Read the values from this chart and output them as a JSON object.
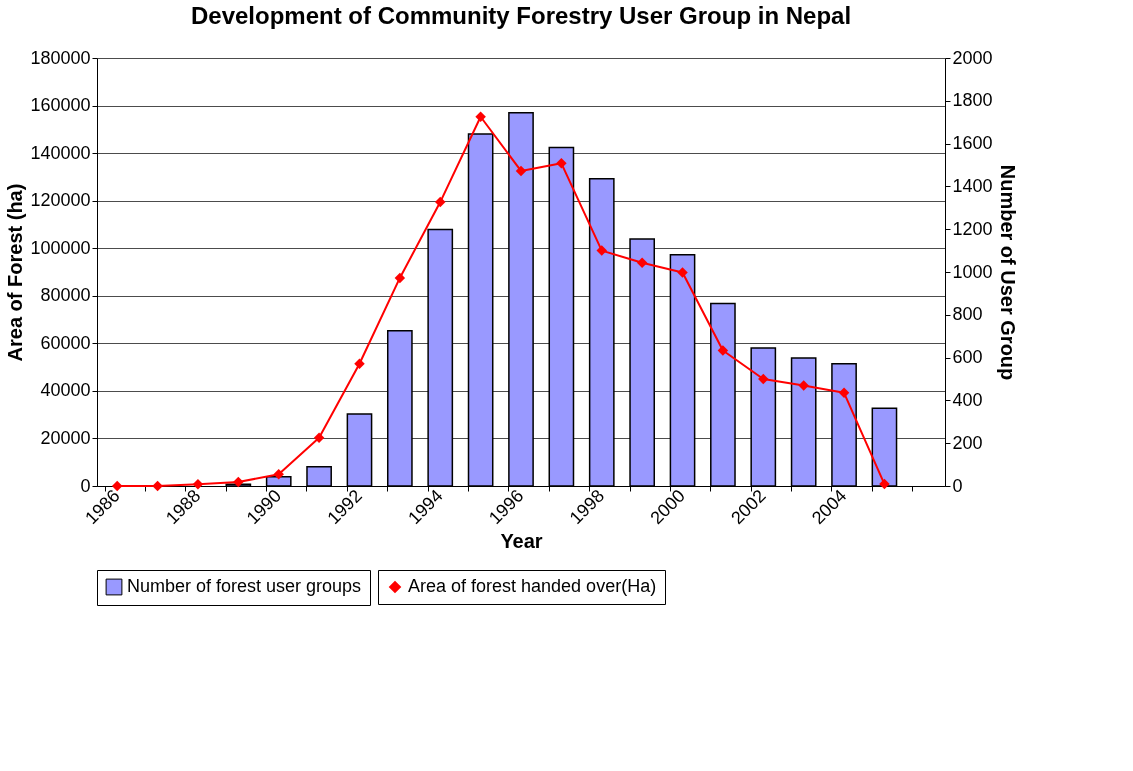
{
  "chart_data": {
    "type": "bar",
    "title": "Development of Community Forestry User Group in Nepal",
    "xlabel": "Year",
    "ylabel": "Area of Forest (ha)",
    "y2label": "Number of User Group",
    "categories": [
      "1986",
      null,
      "1988",
      null,
      "1990",
      null,
      "1992",
      null,
      "1994",
      null,
      "1996",
      null,
      "1998",
      null,
      "2000",
      null,
      "2002",
      null,
      "2004",
      null,
      null
    ],
    "series": [
      {
        "name": "Number of forest user groups",
        "axis": "y2",
        "color": "#9999ff",
        "values": [
          null,
          null,
          null,
          8,
          43,
          90,
          336,
          726,
          1199,
          1645,
          1744,
          1582,
          1436,
          1154,
          1081,
          853,
          645,
          598,
          571,
          363,
          null
        ]
      },
      {
        "name": "Area of forest handed over(Ha)",
        "type": "line",
        "color": "#ff0000",
        "marker": "diamond",
        "values": [
          0,
          0,
          700,
          1700,
          4900,
          20300,
          51400,
          87500,
          119400,
          155300,
          132500,
          135700,
          99000,
          93900,
          89800,
          57000,
          45000,
          42300,
          39200,
          800,
          null
        ]
      }
    ],
    "ylim": [
      0,
      180000
    ],
    "yticks": [
      0,
      20000,
      40000,
      60000,
      80000,
      100000,
      120000,
      140000,
      160000,
      180000
    ],
    "y2lim": [
      0,
      2000
    ],
    "y2ticks": [
      0,
      200,
      400,
      600,
      800,
      1000,
      1200,
      1400,
      1600,
      1800,
      2000
    ],
    "grid": "y",
    "legend": "bottom"
  }
}
